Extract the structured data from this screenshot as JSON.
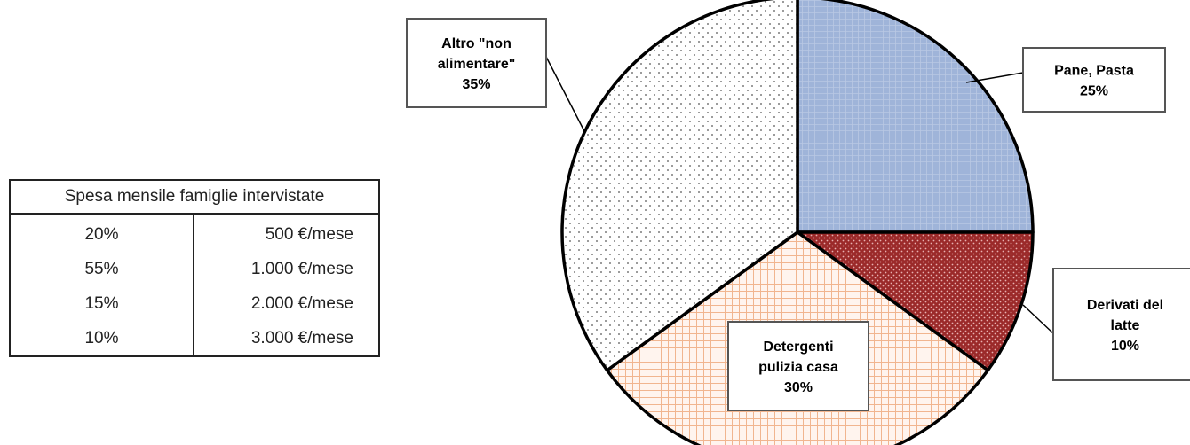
{
  "table": {
    "header": "Spesa mensile famiglie intervistate",
    "rows": [
      {
        "share": "20%",
        "amount": "500 €/mese"
      },
      {
        "share": "55%",
        "amount": "1.000 €/mese"
      },
      {
        "share": "15%",
        "amount": "2.000 €/mese"
      },
      {
        "share": "10%",
        "amount": "3.000 €/mese"
      }
    ]
  },
  "chart_data": {
    "type": "pie",
    "title": "",
    "slices": [
      {
        "label_lines": [
          "Pane, Pasta"
        ],
        "value": 25,
        "value_label": "25%",
        "color": "#9fb4d9",
        "pattern": "light grid"
      },
      {
        "label_lines": [
          "Derivati del",
          "latte"
        ],
        "value": 10,
        "value_label": "10%",
        "color": "#9b2a2a",
        "pattern": "dots"
      },
      {
        "label_lines": [
          "Detergenti",
          "pulizia casa"
        ],
        "value": 30,
        "value_label": "30%",
        "color": "#fbe3d5",
        "pattern": "orange grid"
      },
      {
        "label_lines": [
          "Altro \"non",
          "alimentare\""
        ],
        "value": 35,
        "value_label": "35%",
        "color": "#ffffff",
        "pattern": "sparse dots"
      }
    ]
  }
}
